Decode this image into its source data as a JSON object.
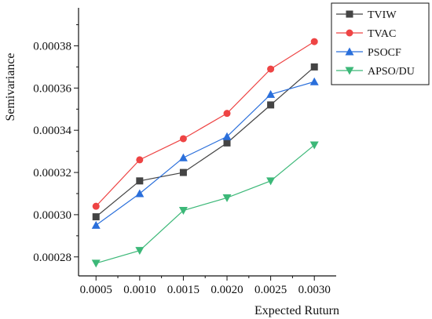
{
  "chart_data": {
    "type": "line",
    "xlabel": "Expected Ruturn",
    "ylabel": "Semivariance",
    "x": [
      0.0005,
      0.001,
      0.0015,
      0.002,
      0.0025,
      0.003
    ],
    "x_tick_labels": [
      "0.0005",
      "0.0010",
      "0.0015",
      "0.0020",
      "0.0025",
      "0.0030"
    ],
    "xlim": [
      0.0003,
      0.00325
    ],
    "y_ticks": [
      0.00028,
      0.0003,
      0.00032,
      0.00034,
      0.00036,
      0.00038
    ],
    "y_tick_labels": [
      "0.00028",
      "0.00030",
      "0.00032",
      "0.00034",
      "0.00036",
      "0.00038"
    ],
    "ylim": [
      0.000271,
      0.000398
    ],
    "grid": false,
    "legend_position": "top-right",
    "series": [
      {
        "name": "TVIW",
        "color": "#444444",
        "marker": "square",
        "values": [
          0.000299,
          0.000316,
          0.00032,
          0.000334,
          0.000352,
          0.00037
        ]
      },
      {
        "name": "TVAC",
        "color": "#ee4444",
        "marker": "circle",
        "values": [
          0.000304,
          0.000326,
          0.000336,
          0.000348,
          0.000369,
          0.000382
        ]
      },
      {
        "name": "PSOCF",
        "color": "#2a6fdb",
        "marker": "triangle-up",
        "values": [
          0.000295,
          0.00031,
          0.000327,
          0.000337,
          0.000357,
          0.000363
        ]
      },
      {
        "name": "APSO/DU",
        "color": "#3cb878",
        "marker": "triangle-down",
        "values": [
          0.000277,
          0.000283,
          0.000302,
          0.000308,
          0.000316,
          0.000333
        ]
      }
    ]
  }
}
